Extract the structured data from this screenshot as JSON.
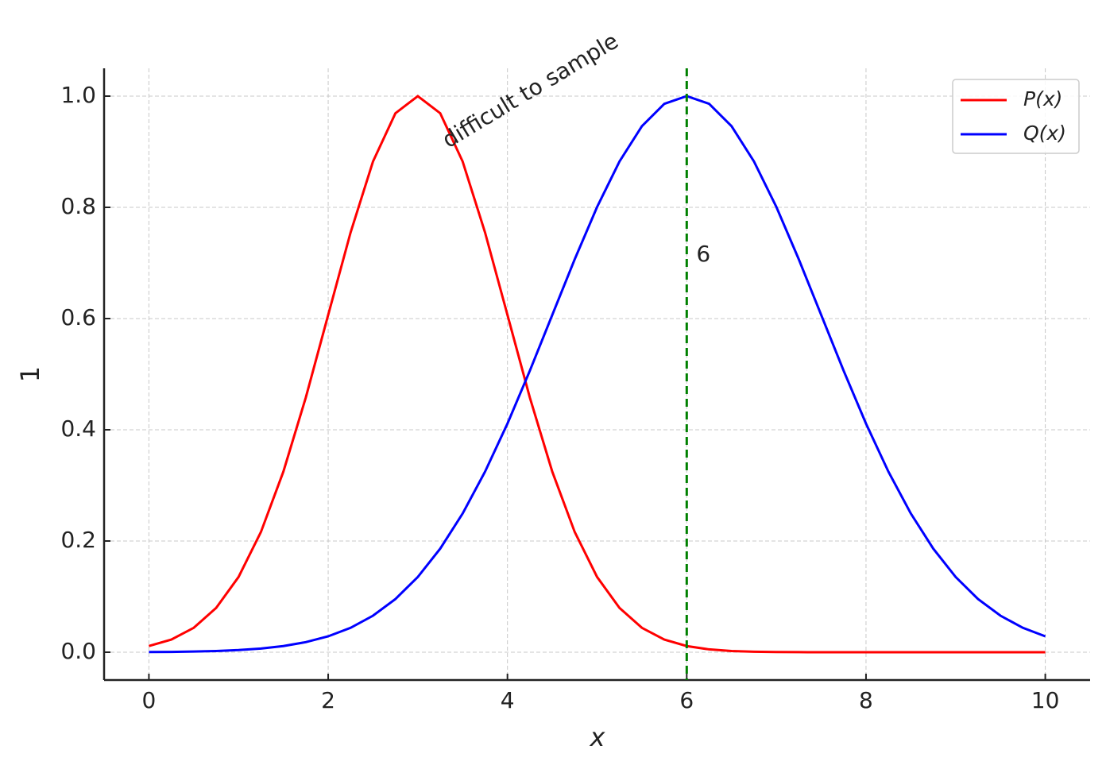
{
  "chart_data": {
    "type": "line",
    "xlabel": "x",
    "ylabel": "1",
    "x": [
      0,
      0.25,
      0.5,
      0.75,
      1,
      1.25,
      1.5,
      1.75,
      2,
      2.25,
      2.5,
      2.75,
      3,
      3.25,
      3.5,
      3.75,
      4,
      4.25,
      4.5,
      4.75,
      5,
      5.25,
      5.5,
      5.75,
      6,
      6.25,
      6.5,
      6.75,
      7,
      7.25,
      7.5,
      7.75,
      8,
      8.25,
      8.5,
      8.75,
      9,
      9.25,
      9.5,
      9.75,
      10
    ],
    "series": [
      {
        "name": "P(x)",
        "color": "#ff0000",
        "values": [
          0.0111,
          0.0228,
          0.0439,
          0.0796,
          0.1353,
          0.2163,
          0.3247,
          0.4578,
          0.6065,
          0.7548,
          0.8825,
          0.9692,
          1,
          0.9692,
          0.8825,
          0.7548,
          0.6065,
          0.4578,
          0.3247,
          0.2163,
          0.1353,
          0.0796,
          0.0439,
          0.0228,
          0.0111,
          0.0051,
          0.0022,
          0.0009,
          0.0003,
          0.0001,
          0,
          0,
          0,
          0,
          0,
          0,
          0,
          0,
          0,
          0,
          0
        ]
      },
      {
        "name": "Q(x)",
        "color": "#0000ff",
        "values": [
          0.0003,
          0.0006,
          0.0012,
          0.0022,
          0.0039,
          0.0066,
          0.0111,
          0.0181,
          0.0286,
          0.0439,
          0.0657,
          0.0956,
          0.1353,
          0.1863,
          0.2494,
          0.3247,
          0.4111,
          0.5063,
          0.6065,
          0.7066,
          0.8007,
          0.8825,
          0.946,
          0.9862,
          1,
          0.9862,
          0.946,
          0.8825,
          0.8007,
          0.7066,
          0.6065,
          0.5063,
          0.4111,
          0.3247,
          0.2494,
          0.1863,
          0.1353,
          0.0956,
          0.0657,
          0.0439,
          0.0286
        ]
      }
    ],
    "xlim": [
      -0.5,
      10.5
    ],
    "ylim": [
      -0.05,
      1.05
    ],
    "xticks": [
      0,
      2,
      4,
      6,
      8,
      10
    ],
    "yticks": [
      {
        "value": 0,
        "label": "0.0"
      },
      {
        "value": 0.2,
        "label": "0.2"
      },
      {
        "value": 0.4,
        "label": "0.4"
      },
      {
        "value": 0.6,
        "label": "0.6"
      },
      {
        "value": 0.8,
        "label": "0.8"
      },
      {
        "value": 1,
        "label": "1.0"
      }
    ],
    "grid": true,
    "legend": "upper right",
    "vline": {
      "value": 6,
      "label": "6",
      "color": "#008000"
    },
    "annotation": {
      "text": "difficult to sample",
      "color": "#008000"
    }
  }
}
